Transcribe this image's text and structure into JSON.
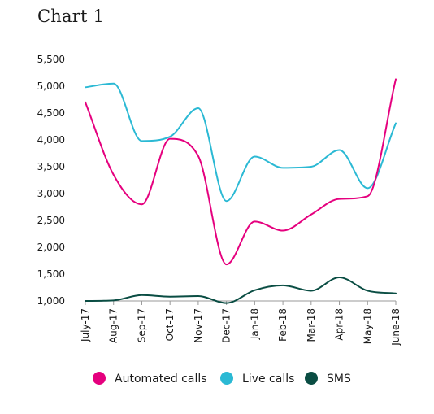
{
  "chart_data": {
    "type": "line",
    "title": "Chart 1",
    "xlabel": "",
    "ylabel": "",
    "categories": [
      "July-17",
      "Aug-17",
      "Sep-17",
      "Oct-17",
      "Nov-17",
      "Dec-17",
      "Jan-18",
      "Feb-18",
      "Mar-18",
      "Apr-18",
      "May-18",
      "June-18"
    ],
    "ylim": [
      1000,
      5500
    ],
    "yticks": [
      1000,
      1500,
      2000,
      2500,
      3000,
      3500,
      4000,
      4500,
      5000,
      5500
    ],
    "ytick_labels": [
      "1,000",
      "1,500",
      "2,000",
      "2,500",
      "3,000",
      "3,500",
      "4,000",
      "4,500",
      "5,000",
      "5,500"
    ],
    "grid": false,
    "legend_position": "bottom",
    "series": [
      {
        "name": "Automated calls",
        "color": "#e5007e",
        "values": [
          4700,
          3350,
          2800,
          4020,
          3700,
          1680,
          2480,
          2310,
          2610,
          2900,
          2950,
          5130
        ]
      },
      {
        "name": "Live calls",
        "color": "#2bb9d4",
        "values": [
          4980,
          5050,
          3980,
          4060,
          4590,
          2860,
          3690,
          3480,
          3500,
          3810,
          3100,
          4310
        ]
      },
      {
        "name": "SMS",
        "color": "#0a4d43",
        "values": [
          1000,
          1010,
          1110,
          1080,
          1090,
          960,
          1200,
          1290,
          1190,
          1440,
          1190,
          1140
        ]
      }
    ]
  }
}
